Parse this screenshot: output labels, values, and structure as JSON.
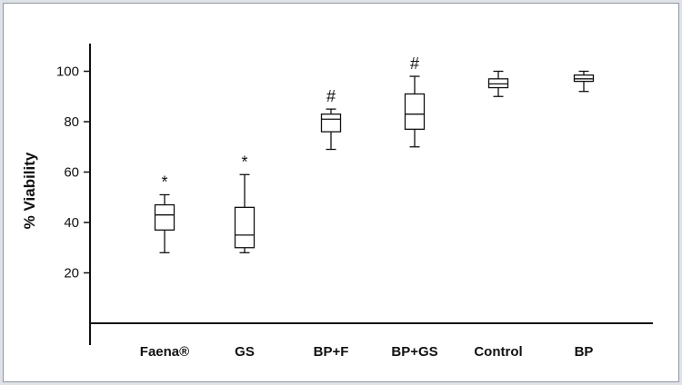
{
  "chart_data": {
    "type": "boxplot",
    "title": "",
    "xlabel": "",
    "ylabel": "% Viability",
    "ylim": [
      0,
      110
    ],
    "yticks": [
      20,
      40,
      60,
      80,
      100
    ],
    "grid": false,
    "legend": "none",
    "categories": [
      "Faena®",
      "GS",
      "BP+F",
      "BP+GS",
      "Control",
      "BP"
    ],
    "boxes": [
      {
        "category": "Faena®",
        "min": 28,
        "q1": 37,
        "median": 43,
        "q3": 47,
        "max": 51,
        "annotation": "*"
      },
      {
        "category": "GS",
        "min": 28,
        "q1": 30,
        "median": 35,
        "q3": 46,
        "max": 59,
        "annotation": "*"
      },
      {
        "category": "BP+F",
        "min": 69,
        "q1": 76,
        "median": 81,
        "q3": 83,
        "max": 85,
        "annotation": "#"
      },
      {
        "category": "BP+GS",
        "min": 70,
        "q1": 77,
        "median": 83,
        "q3": 91,
        "max": 98,
        "annotation": "#"
      },
      {
        "category": "Control",
        "min": 90,
        "q1": 93.5,
        "median": 95,
        "q3": 97,
        "max": 100,
        "annotation": ""
      },
      {
        "category": "BP",
        "min": 92,
        "q1": 96,
        "median": 97,
        "q3": 98.5,
        "max": 100,
        "annotation": ""
      }
    ],
    "colors": {
      "stroke": "#111111",
      "box_fill": "#ffffff"
    }
  }
}
